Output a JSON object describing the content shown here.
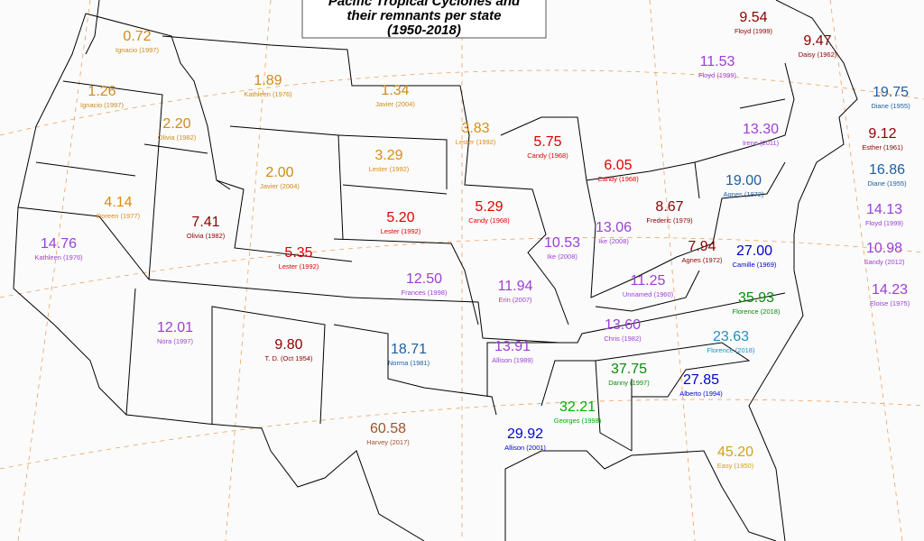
{
  "title": [
    "Pacific Tropical Cyclones and",
    "their remnants per state",
    "(1950-2018)"
  ],
  "labels": [
    {
      "value": "0.72",
      "storm": "Ignacio (1997)",
      "color": "#d08a1a"
    },
    {
      "value": "1.26",
      "storm": "Ignacio (1997)",
      "color": "#d08a1a"
    },
    {
      "value": "1.89",
      "storm": "Kathleen (1976)",
      "color": "#d08a1a"
    },
    {
      "value": "1.34",
      "storm": "Javier (2004)",
      "color": "#d08a1a"
    },
    {
      "value": "2.20",
      "storm": "Olivia (1982)",
      "color": "#d08a1a"
    },
    {
      "value": "3.83",
      "storm": "Lester (1992)",
      "color": "#e08a10"
    },
    {
      "value": "3.29",
      "storm": "Lester (1992)",
      "color": "#e08a10"
    },
    {
      "value": "2.00",
      "storm": "Javier (2004)",
      "color": "#d08a1a"
    },
    {
      "value": "4.14",
      "storm": "Doreen (1977)",
      "color": "#e08a10"
    },
    {
      "value": "14.76",
      "storm": "Kathleen (1976)",
      "color": "#9b3fd6"
    },
    {
      "value": "7.41",
      "storm": "Olivia (1982)",
      "color": "#8b0000"
    },
    {
      "value": "5.75",
      "storm": "Candy (1968)",
      "color": "#e00000"
    },
    {
      "value": "6.05",
      "storm": "Candy (1968)",
      "color": "#e00000"
    },
    {
      "value": "5.29",
      "storm": "Candy (1968)",
      "color": "#e00000"
    },
    {
      "value": "5.20",
      "storm": "Lester (1992)",
      "color": "#e00000"
    },
    {
      "value": "5.35",
      "storm": "Lester (1992)",
      "color": "#e00000"
    },
    {
      "value": "9.54",
      "storm": "Floyd (1999)",
      "color": "#8b0000"
    },
    {
      "value": "9.47",
      "storm": "Daisy (1962)",
      "color": "#8b0000"
    },
    {
      "value": "11.53",
      "storm": "Floyd (1999)",
      "color": "#9b3fd6"
    },
    {
      "value": "19.75",
      "storm": "Diane (1955)",
      "color": "#1f5fa0"
    },
    {
      "value": "13.30",
      "storm": "Irene (2011)",
      "color": "#9b3fd6"
    },
    {
      "value": "9.12",
      "storm": "Esther (1961)",
      "color": "#8b0000"
    },
    {
      "value": "16.86",
      "storm": "Diane (1955)",
      "color": "#1f5fa0"
    },
    {
      "value": "19.00",
      "storm": "Agnes (1972)",
      "color": "#1f5fa0"
    },
    {
      "value": "8.67",
      "storm": "Frederic (1979)",
      "color": "#8b0000"
    },
    {
      "value": "13.06",
      "storm": "Ike (2008)",
      "color": "#9b3fd6"
    },
    {
      "value": "10.53",
      "storm": "Ike (2008)",
      "color": "#9b3fd6"
    },
    {
      "value": "7.94",
      "storm": "Agnes (1972)",
      "color": "#8b0000"
    },
    {
      "value": "27.00",
      "storm": "Camille (1969)",
      "color": "#0000d0"
    },
    {
      "value": "14.13",
      "storm": "Floyd (1999)",
      "color": "#9b3fd6"
    },
    {
      "value": "10.98",
      "storm": "Sandy (2012)",
      "color": "#9b3fd6"
    },
    {
      "value": "14.23",
      "storm": "Eloise (1975)",
      "color": "#9b3fd6"
    },
    {
      "value": "12.50",
      "storm": "Frances (1998)",
      "color": "#9b3fd6"
    },
    {
      "value": "11.94",
      "storm": "Erin (2007)",
      "color": "#9b3fd6"
    },
    {
      "value": "11.25",
      "storm": "Unnamed (1960)",
      "color": "#9b3fd6"
    },
    {
      "value": "35.93",
      "storm": "Florence (2018)",
      "color": "#0a8a0a"
    },
    {
      "value": "13.60",
      "storm": "Chris (1982)",
      "color": "#9b3fd6"
    },
    {
      "value": "23.63",
      "storm": "Florence (2018)",
      "color": "#1e90c0"
    },
    {
      "value": "12.01",
      "storm": "Nora (1997)",
      "color": "#9b3fd6"
    },
    {
      "value": "9.80",
      "storm": "T. D. (Oct 1954)",
      "color": "#8b0000"
    },
    {
      "value": "18.71",
      "storm": "Norma (1981)",
      "color": "#1f5fa0"
    },
    {
      "value": "13.91",
      "storm": "Allison (1989)",
      "color": "#9b3fd6"
    },
    {
      "value": "37.75",
      "storm": "Danny (1997)",
      "color": "#0a8a0a"
    },
    {
      "value": "27.85",
      "storm": "Alberto (1994)",
      "color": "#0000d0"
    },
    {
      "value": "32.21",
      "storm": "Georges (1998)",
      "color": "#00b000"
    },
    {
      "value": "29.92",
      "storm": "Allison (2001)",
      "color": "#0000d0"
    },
    {
      "value": "60.58",
      "storm": "Harvey (2017)",
      "color": "#a0522d"
    },
    {
      "value": "45.20",
      "storm": "Easy (1950)",
      "color": "#d4a017"
    }
  ]
}
